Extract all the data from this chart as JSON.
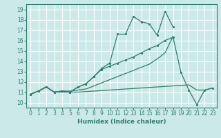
{
  "xlabel": "Humidex (Indice chaleur)",
  "background_color": "#cce9e9",
  "grid_color": "#ffffff",
  "line_color": "#2e7d6e",
  "xlim": [
    -0.5,
    23.5
  ],
  "ylim": [
    9.5,
    19.5
  ],
  "xticks": [
    0,
    1,
    2,
    3,
    4,
    5,
    6,
    7,
    8,
    9,
    10,
    11,
    12,
    13,
    14,
    15,
    16,
    17,
    18,
    19,
    20,
    21,
    22,
    23
  ],
  "yticks": [
    10,
    11,
    12,
    13,
    14,
    15,
    16,
    17,
    18,
    19
  ],
  "series_a": {
    "x": [
      0,
      1,
      2,
      3,
      4,
      5,
      6,
      7,
      8,
      9,
      10,
      11,
      12,
      13,
      14,
      15,
      16,
      17,
      18,
      19,
      20,
      21,
      22,
      23
    ],
    "y": [
      10.8,
      11.1,
      11.5,
      11.0,
      11.0,
      11.0,
      11.0,
      11.05,
      11.1,
      11.15,
      11.2,
      11.25,
      11.3,
      11.35,
      11.4,
      11.45,
      11.5,
      11.55,
      11.6,
      11.65,
      11.7,
      11.2,
      11.2,
      11.4
    ],
    "marker": false
  },
  "series_b": {
    "x": [
      0,
      1,
      2,
      3,
      4,
      5,
      6,
      7,
      8,
      9,
      10,
      11,
      12,
      13,
      14,
      15,
      16,
      17,
      18
    ],
    "y": [
      10.8,
      11.1,
      11.5,
      11.0,
      11.1,
      11.1,
      11.2,
      11.3,
      11.6,
      11.9,
      12.2,
      12.5,
      12.8,
      13.1,
      13.4,
      13.7,
      14.2,
      14.8,
      16.4
    ],
    "marker": false
  },
  "series_c": {
    "x": [
      0,
      1,
      2,
      3,
      4,
      5,
      6,
      7,
      8,
      9,
      10,
      11,
      12,
      13,
      14,
      15,
      16,
      17,
      18
    ],
    "y": [
      10.8,
      11.1,
      11.5,
      11.0,
      11.1,
      11.0,
      11.5,
      11.8,
      12.5,
      13.3,
      13.8,
      16.6,
      16.6,
      18.3,
      17.8,
      17.6,
      16.5,
      18.8,
      17.3
    ],
    "marker": true
  },
  "series_d": {
    "x": [
      0,
      1,
      2,
      3,
      4,
      5,
      6,
      7,
      8,
      9,
      10,
      11,
      12,
      13,
      14,
      15,
      16,
      17,
      18,
      19,
      20,
      21,
      22,
      23
    ],
    "y": [
      10.8,
      11.1,
      11.5,
      11.0,
      11.1,
      11.0,
      11.5,
      11.8,
      12.5,
      13.2,
      13.5,
      13.8,
      14.1,
      14.4,
      14.8,
      15.2,
      15.5,
      16.0,
      16.3,
      12.9,
      11.2,
      9.8,
      11.2,
      11.4
    ],
    "marker": true
  }
}
